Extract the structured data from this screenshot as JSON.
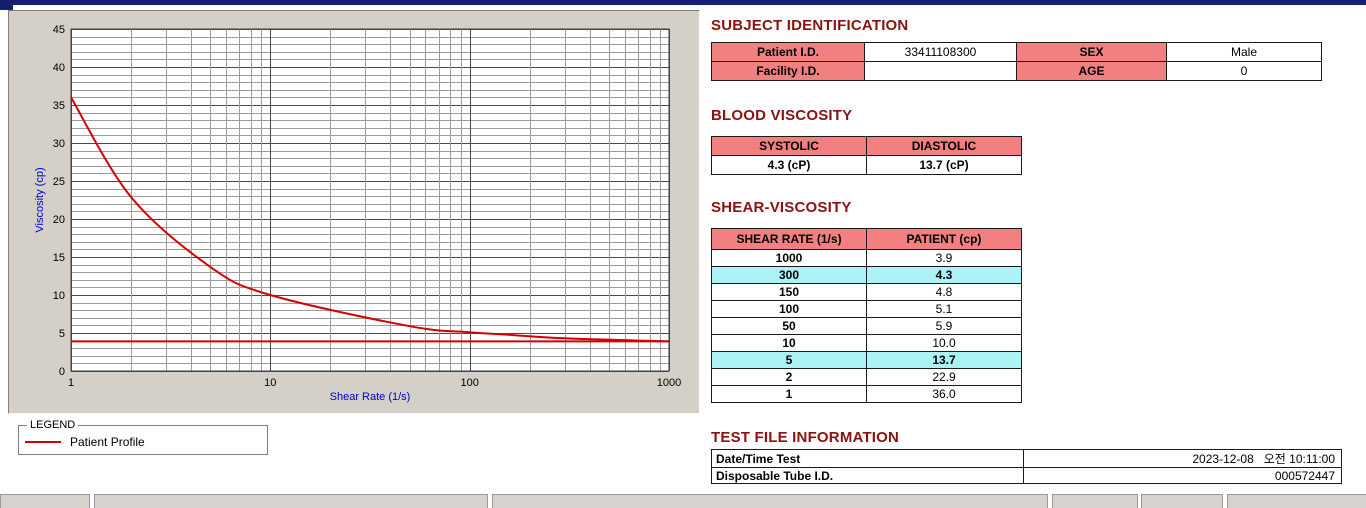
{
  "colors": {
    "title_bar": "#141e6e",
    "heading": "#8b1212",
    "table_header_bg": "#f28080",
    "row_highlight": "#aaf2f4",
    "accent_line": "#d40000"
  },
  "chart": {
    "legend_title": "LEGEND",
    "legend_label": "Patient Profile"
  },
  "chart_data": {
    "type": "line",
    "title": "",
    "xlabel": "Shear Rate (1/s)",
    "ylabel": "Viscosity (cp)",
    "x_scale": "log",
    "xlim": [
      1,
      1000
    ],
    "ylim": [
      0,
      45
    ],
    "x_major_ticks": [
      1,
      10,
      100,
      1000
    ],
    "y_major_ticks": [
      0,
      5,
      10,
      15,
      20,
      25,
      30,
      35,
      40,
      45
    ],
    "grid": "major and minor gridlines on both axes",
    "legend_position": "groupbox below chart",
    "series": [
      {
        "name": "Patient Profile",
        "color": "#d40000",
        "x": [
          1,
          2,
          5,
          10,
          50,
          100,
          150,
          300,
          1000
        ],
        "y": [
          36.0,
          22.9,
          13.7,
          10.0,
          5.9,
          5.1,
          4.8,
          4.3,
          3.9
        ]
      }
    ],
    "baseline": {
      "y": 3.9,
      "color": "#d40000"
    }
  },
  "subject_identification": {
    "title": "SUBJECT IDENTIFICATION",
    "rows": [
      {
        "label1": "Patient I.D.",
        "value1": "33411108300",
        "label2": "SEX",
        "value2": "Male"
      },
      {
        "label1": "Facility I.D.",
        "value1": "",
        "label2": "AGE",
        "value2": "0"
      }
    ]
  },
  "blood_viscosity": {
    "title": "BLOOD VISCOSITY",
    "headers": [
      "SYSTOLIC",
      "DIASTOLIC"
    ],
    "values": [
      "4.3 (cP)",
      "13.7 (cP)"
    ]
  },
  "shear_viscosity": {
    "title": "SHEAR-VISCOSITY",
    "headers": [
      "SHEAR RATE (1/s)",
      "PATIENT (cp)"
    ],
    "rows": [
      {
        "rate": "1000",
        "value": "3.9",
        "highlight": false
      },
      {
        "rate": "300",
        "value": "4.3",
        "highlight": true
      },
      {
        "rate": "150",
        "value": "4.8",
        "highlight": false
      },
      {
        "rate": "100",
        "value": "5.1",
        "highlight": false
      },
      {
        "rate": "50",
        "value": "5.9",
        "highlight": false
      },
      {
        "rate": "10",
        "value": "10.0",
        "highlight": false
      },
      {
        "rate": "5",
        "value": "13.7",
        "highlight": true
      },
      {
        "rate": "2",
        "value": "22.9",
        "highlight": false
      },
      {
        "rate": "1",
        "value": "36.0",
        "highlight": false
      }
    ]
  },
  "test_file": {
    "title": "TEST FILE INFORMATION",
    "rows": [
      {
        "label": "Date/Time Test",
        "value": "2023-12-08   오전 10:11:00"
      },
      {
        "label": "Disposable Tube I.D.",
        "value": "000572447"
      }
    ]
  }
}
